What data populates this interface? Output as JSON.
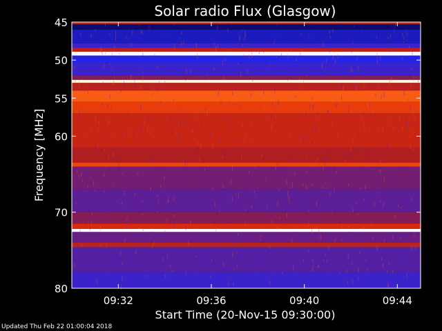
{
  "chart_data": {
    "type": "heatmap",
    "title": "Solar radio Flux (Glasgow)",
    "xlabel": "Start Time (20-Nov-15 09:30:00)",
    "ylabel": "Frequency [MHz]",
    "x_range_minutes": [
      "09:30",
      "09:45"
    ],
    "y_range_mhz": [
      45,
      80
    ],
    "y_scale": "linear",
    "x_tick_labels": [
      "09:32",
      "09:36",
      "09:40",
      "09:44"
    ],
    "x_tick_minutes": [
      2,
      6,
      10,
      14
    ],
    "y_tick_labels": [
      "45",
      "50",
      "55",
      "60",
      "70",
      "80"
    ],
    "y_ticks_mhz": [
      45,
      50,
      55,
      60,
      70,
      80
    ],
    "colormap": [
      "#00003a",
      "#0c0c80",
      "#2525e8",
      "#5a1f9a",
      "#a01c2a",
      "#e02a08",
      "#ff6a18",
      "#ffe0a0",
      "#ffffff"
    ],
    "band_intensity": [
      {
        "from_mhz": 45.0,
        "to_mhz": 45.3,
        "level": 0.55
      },
      {
        "from_mhz": 45.3,
        "to_mhz": 46.0,
        "level": 0.1
      },
      {
        "from_mhz": 46.0,
        "to_mhz": 47.8,
        "level": 0.2
      },
      {
        "from_mhz": 47.8,
        "to_mhz": 48.4,
        "level": 0.3
      },
      {
        "from_mhz": 48.4,
        "to_mhz": 48.9,
        "level": 0.55
      },
      {
        "from_mhz": 48.9,
        "to_mhz": 49.4,
        "level": 1.0
      },
      {
        "from_mhz": 49.4,
        "to_mhz": 50.4,
        "level": 0.25
      },
      {
        "from_mhz": 50.4,
        "to_mhz": 52.0,
        "level": 0.3
      },
      {
        "from_mhz": 52.0,
        "to_mhz": 52.6,
        "level": 0.45
      },
      {
        "from_mhz": 52.6,
        "to_mhz": 53.0,
        "level": 0.95
      },
      {
        "from_mhz": 53.0,
        "to_mhz": 54.0,
        "level": 0.55
      },
      {
        "from_mhz": 54.0,
        "to_mhz": 55.5,
        "level": 0.72
      },
      {
        "from_mhz": 55.5,
        "to_mhz": 57.0,
        "level": 0.66
      },
      {
        "from_mhz": 57.0,
        "to_mhz": 61.5,
        "level": 0.58
      },
      {
        "from_mhz": 61.5,
        "to_mhz": 63.5,
        "level": 0.53
      },
      {
        "from_mhz": 63.5,
        "to_mhz": 64.0,
        "level": 0.68
      },
      {
        "from_mhz": 64.0,
        "to_mhz": 67.0,
        "level": 0.42
      },
      {
        "from_mhz": 67.0,
        "to_mhz": 70.0,
        "level": 0.38
      },
      {
        "from_mhz": 70.0,
        "to_mhz": 71.5,
        "level": 0.45
      },
      {
        "from_mhz": 71.5,
        "to_mhz": 72.2,
        "level": 0.62
      },
      {
        "from_mhz": 72.2,
        "to_mhz": 72.6,
        "level": 1.0
      },
      {
        "from_mhz": 72.6,
        "to_mhz": 74.0,
        "level": 0.4
      },
      {
        "from_mhz": 74.0,
        "to_mhz": 74.6,
        "level": 0.55
      },
      {
        "from_mhz": 74.6,
        "to_mhz": 78.0,
        "level": 0.36
      },
      {
        "from_mhz": 78.0,
        "to_mhz": 80.0,
        "level": 0.3
      }
    ],
    "grid": false,
    "legend": "none"
  },
  "footer": {
    "updated": "Updated Thu Feb 22 01:00:04 2018"
  },
  "colors": {
    "background": "#000000",
    "text": "#ffffff"
  }
}
